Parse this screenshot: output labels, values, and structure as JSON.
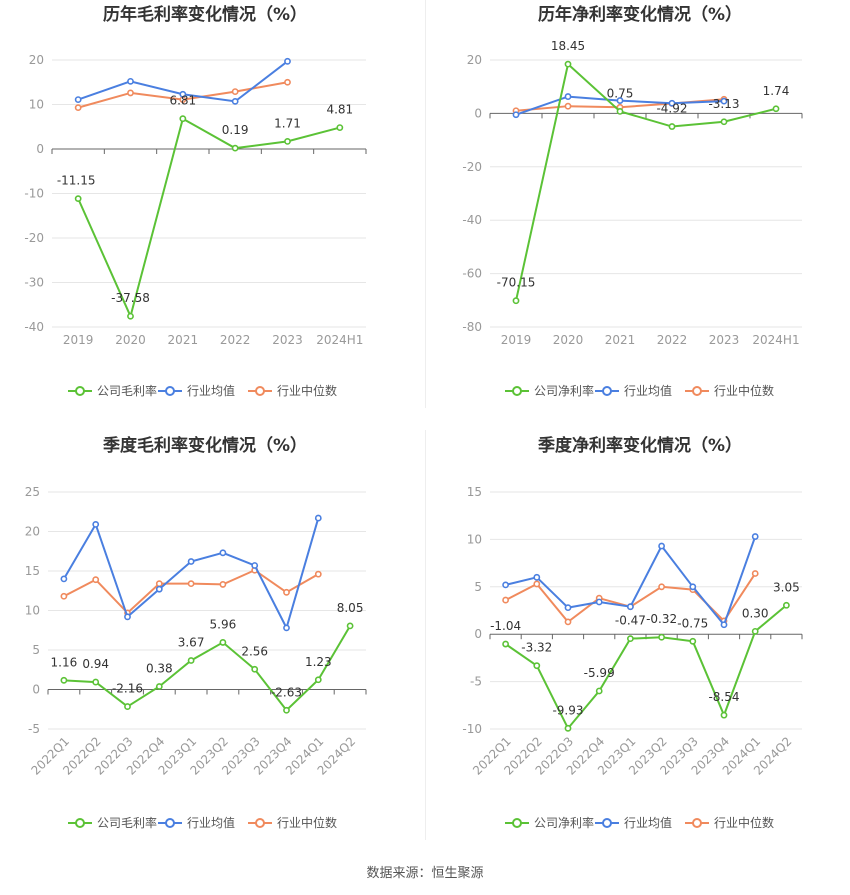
{
  "colors": {
    "company": "#5bc236",
    "avg": "#4a7fe0",
    "median": "#f08a5d",
    "grid": "#e6e6e6",
    "axis": "#999999",
    "label": "#333333",
    "tick": "#999999"
  },
  "legend": {
    "avg": "行业均值",
    "median": "行业中位数"
  },
  "source": "数据来源：恒生聚源",
  "chart_data": [
    {
      "type": "line",
      "title": "历年毛利率变化情况（%）",
      "categories": [
        "2019",
        "2020",
        "2021",
        "2022",
        "2023",
        "2024H1"
      ],
      "ylim": [
        -40,
        20
      ],
      "yticks": [
        20,
        10,
        0,
        -10,
        -20,
        -30,
        -40
      ],
      "rotate_x": false,
      "series": [
        {
          "key": "company",
          "name": "公司毛利率",
          "values": [
            -11.15,
            -37.58,
            6.81,
            0.19,
            1.71,
            4.81
          ],
          "labels": [
            "-11.15",
            "-37.58",
            "6.81",
            "0.19",
            "1.71",
            "4.81"
          ]
        },
        {
          "key": "avg",
          "name": "行业均值",
          "values": [
            11.1,
            15.2,
            12.3,
            10.7,
            19.7,
            null
          ]
        },
        {
          "key": "median",
          "name": "行业中位数",
          "values": [
            9.3,
            12.6,
            11.1,
            12.9,
            15.0,
            null
          ]
        }
      ]
    },
    {
      "type": "line",
      "title": "历年净利率变化情况（%）",
      "categories": [
        "2019",
        "2020",
        "2021",
        "2022",
        "2023",
        "2024H1"
      ],
      "ylim": [
        -80,
        20
      ],
      "yticks": [
        20,
        0,
        -20,
        -40,
        -60,
        -80
      ],
      "rotate_x": false,
      "series": [
        {
          "key": "company",
          "name": "公司净利率",
          "values": [
            -70.15,
            18.45,
            0.75,
            -4.92,
            -3.13,
            1.74
          ],
          "labels": [
            "-70.15",
            "18.45",
            "0.75",
            "-4.92",
            "-3.13",
            "1.74"
          ]
        },
        {
          "key": "avg",
          "name": "行业均值",
          "values": [
            -0.5,
            6.3,
            4.8,
            3.8,
            4.6,
            null
          ]
        },
        {
          "key": "median",
          "name": "行业中位数",
          "values": [
            1.0,
            2.7,
            2.3,
            3.7,
            5.3,
            null
          ]
        }
      ]
    },
    {
      "type": "line",
      "title": "季度毛利率变化情况（%）",
      "categories": [
        "2022Q1",
        "2022Q2",
        "2022Q3",
        "2022Q4",
        "2023Q1",
        "2023Q2",
        "2023Q3",
        "2023Q4",
        "2024Q1",
        "2024Q2"
      ],
      "ylim": [
        -5,
        25
      ],
      "yticks": [
        25,
        20,
        15,
        10,
        5,
        0,
        -5
      ],
      "rotate_x": true,
      "series": [
        {
          "key": "company",
          "name": "公司毛利率",
          "values": [
            1.16,
            0.94,
            -2.16,
            0.38,
            3.67,
            5.96,
            2.56,
            -2.63,
            1.23,
            8.05
          ],
          "labels": [
            "1.16",
            "0.94",
            "-2.16",
            "0.38",
            "3.67",
            "5.96",
            "2.56",
            "-2.63",
            "1.23",
            "8.05"
          ]
        },
        {
          "key": "avg",
          "name": "行业均值",
          "values": [
            14.0,
            20.9,
            9.2,
            12.7,
            16.2,
            17.3,
            15.7,
            7.8,
            21.7,
            null
          ]
        },
        {
          "key": "median",
          "name": "行业中位数",
          "values": [
            11.8,
            13.9,
            9.7,
            13.4,
            13.4,
            13.3,
            15.1,
            12.3,
            14.6,
            null
          ]
        }
      ]
    },
    {
      "type": "line",
      "title": "季度净利率变化情况（%）",
      "categories": [
        "2022Q1",
        "2022Q2",
        "2022Q3",
        "2022Q4",
        "2023Q1",
        "2023Q2",
        "2023Q3",
        "2023Q4",
        "2024Q1",
        "2024Q2"
      ],
      "ylim": [
        -10,
        15
      ],
      "yticks": [
        15,
        10,
        5,
        0,
        -5,
        -10
      ],
      "rotate_x": true,
      "series": [
        {
          "key": "company",
          "name": "公司净利率",
          "values": [
            -1.04,
            -3.32,
            -9.93,
            -5.99,
            -0.47,
            -0.32,
            -0.75,
            -8.54,
            0.3,
            3.05
          ],
          "labels": [
            "-1.04",
            "-3.32",
            "-9.93",
            "-5.99",
            "-0.47",
            "-0.32",
            "-0.75",
            "-8.54",
            "0.30",
            "3.05"
          ]
        },
        {
          "key": "avg",
          "name": "行业均值",
          "values": [
            5.2,
            6.0,
            2.8,
            3.4,
            2.9,
            9.3,
            5.0,
            1.0,
            10.3,
            null
          ]
        },
        {
          "key": "median",
          "name": "行业中位数",
          "values": [
            3.6,
            5.3,
            1.3,
            3.8,
            2.9,
            5.0,
            4.7,
            1.4,
            6.4,
            null
          ]
        }
      ]
    }
  ]
}
